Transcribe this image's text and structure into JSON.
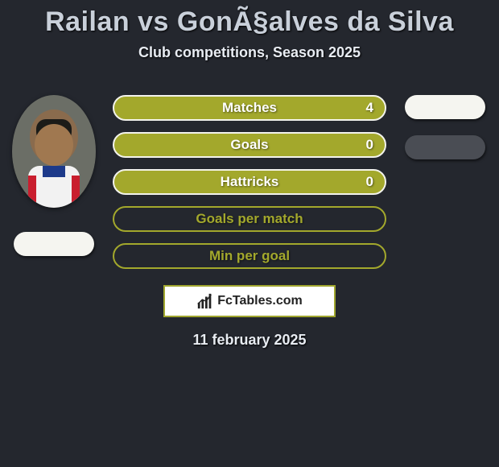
{
  "header": {
    "title": "Railan vs GonÃ§alves da Silva",
    "subtitle": "Club competitions, Season 2025"
  },
  "stats": [
    {
      "label": "Matches",
      "value_left": "4",
      "bg": "#a3a82c",
      "border": "#f3f3ec"
    },
    {
      "label": "Goals",
      "value_left": "0",
      "bg": "#a3a82c",
      "border": "#f3f3ec"
    },
    {
      "label": "Hattricks",
      "value_left": "0",
      "bg": "#a3a82c",
      "border": "#f3f3ec"
    },
    {
      "label": "Goals per match",
      "value_left": "",
      "bg": "#24272e",
      "border": "#a3a82c"
    },
    {
      "label": "Min per goal",
      "value_left": "",
      "bg": "#24272e",
      "border": "#a3a82c"
    }
  ],
  "stat_label_color_filled": "#ffffff",
  "stat_label_color_outline": "#a3a82c",
  "player_left": {
    "has_photo": true,
    "pill_bg": "#f5f5f0"
  },
  "player_right": {
    "pills": [
      {
        "bg": "#f5f5f0"
      },
      {
        "bg": "#4a4d54"
      }
    ]
  },
  "branding": {
    "site": "FcTables.com",
    "border_color": "#a0a62e"
  },
  "date": "11 february 2025",
  "colors": {
    "page_bg": "#24272e",
    "title_color": "#c9d0da",
    "text_color": "#e8ecf2",
    "accent": "#a3a82c"
  }
}
